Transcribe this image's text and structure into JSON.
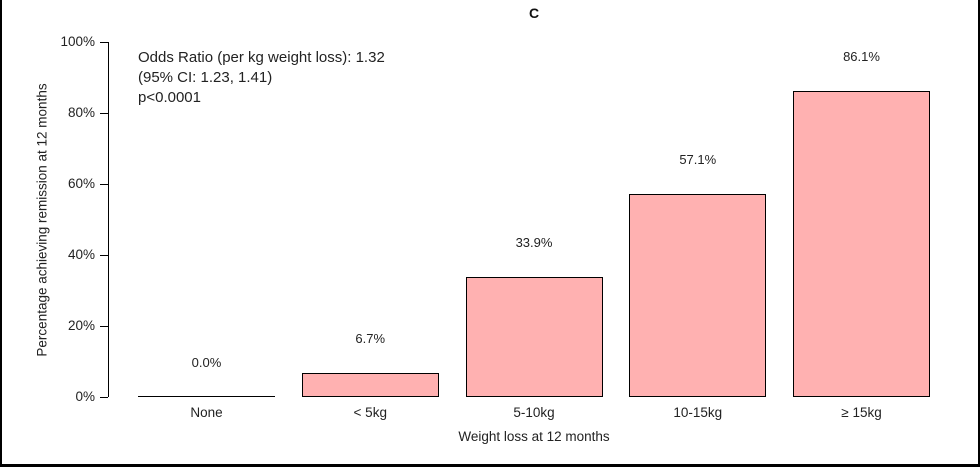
{
  "chart_data": {
    "type": "bar",
    "panel_label": "C",
    "categories": [
      "None",
      "< 5kg",
      "5-10kg",
      "10-15kg",
      "≥ 15kg"
    ],
    "values": [
      0.0,
      6.7,
      33.9,
      57.1,
      86.1
    ],
    "value_labels": [
      "0.0%",
      "6.7%",
      "33.9%",
      "57.1%",
      "86.1%"
    ],
    "xlabel": "Weight loss at 12 months",
    "ylabel": "Percentage achieving remission at 12 months",
    "ylim": [
      0,
      100
    ],
    "ytick_values": [
      0,
      20,
      40,
      60,
      80,
      100
    ],
    "ytick_labels": [
      "0%",
      "20%",
      "40%",
      "60%",
      "80%",
      "100%"
    ],
    "annotation_lines": [
      "Odds Ratio (per kg weight loss): 1.32",
      "(95% CI: 1.23, 1.41)",
      "p<0.0001"
    ],
    "bar_fill": "#FFB1B1",
    "bar_border": "#000000",
    "grid": false,
    "legend": false
  }
}
